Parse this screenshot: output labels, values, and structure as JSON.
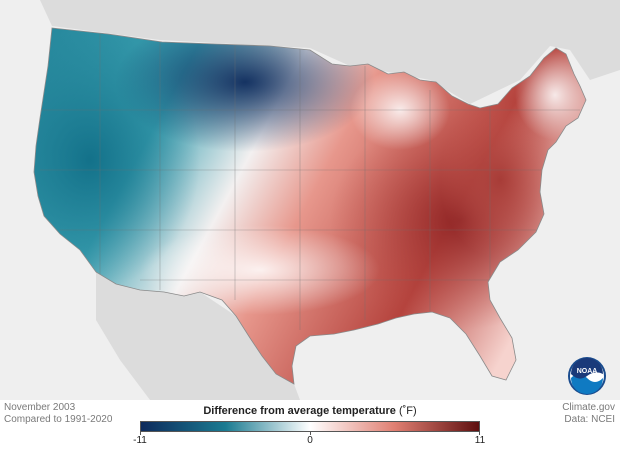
{
  "map": {
    "period": "November 2003",
    "baseline": "Compared to 1991-2020",
    "credit": "Climate.gov",
    "data_source": "Data: NCEI",
    "logo_text": "NOAA",
    "colors": {
      "background": "#efefef",
      "neighbors": "#dcdcdc",
      "cold_extreme": "#0d2a5c",
      "cold": "#1b7b91",
      "neutral": "#ffffff",
      "warm": "#e07f72",
      "warm_extreme": "#5e0f0f"
    }
  },
  "legend": {
    "title": "Difference from average temperature",
    "unit": "(˚F)",
    "ticks": [
      {
        "label": "-11",
        "value": -11
      },
      {
        "label": "0",
        "value": 0
      },
      {
        "label": "11",
        "value": 11
      }
    ],
    "range": [
      -11,
      11
    ]
  }
}
